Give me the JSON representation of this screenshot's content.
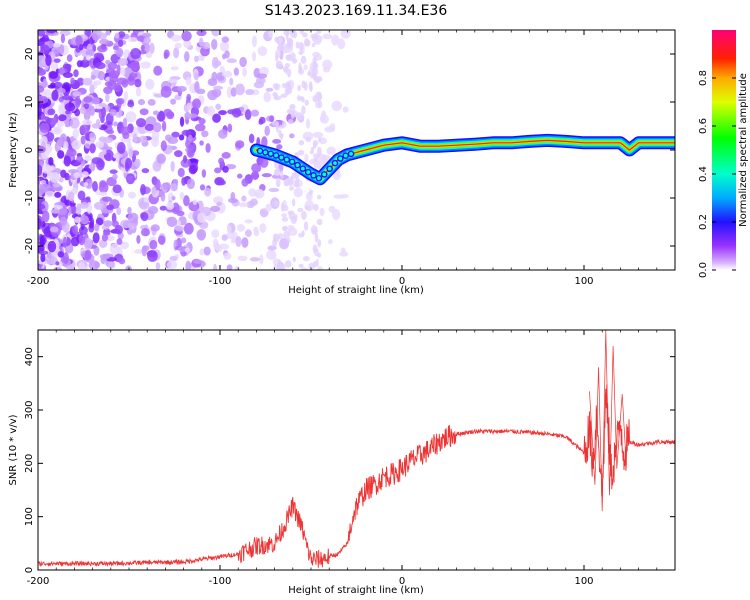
{
  "title": "S143.2023.169.11.34.E36",
  "colors": {
    "snr_line": "#ee3333",
    "axis": "#000000"
  },
  "chart_data": [
    {
      "type": "heatmap",
      "xlabel": "Height of straight line (km)",
      "ylabel": "Frequency (Hz)",
      "xlim": [
        -200,
        150
      ],
      "ylim": [
        -25,
        25
      ],
      "xticks": [
        -200,
        -100,
        0,
        100
      ],
      "yticks": [
        -20,
        -10,
        0,
        10,
        20
      ],
      "colorbar": {
        "label": "Normalized spectral amplitude",
        "ticks": [
          "0.0",
          "0.2",
          "0.4",
          "0.6",
          "0.8"
        ],
        "tick_values": [
          0.0,
          0.2,
          0.4,
          0.6,
          0.8
        ],
        "range": [
          0,
          1
        ],
        "colormap": "gist_rainbow_r"
      },
      "ridge": {
        "x": [
          -80,
          -70,
          -60,
          -50,
          -45,
          -40,
          -35,
          -30,
          -20,
          -10,
          0,
          10,
          20,
          30,
          40,
          50,
          60,
          70,
          80,
          90,
          100,
          110,
          120,
          125,
          130,
          140,
          150
        ],
        "y": [
          0,
          -1,
          -2.5,
          -5,
          -6,
          -4,
          -2,
          -1,
          0,
          1,
          1.5,
          0.8,
          0.8,
          1,
          1.2,
          1.5,
          1.5,
          1.8,
          2,
          1.8,
          1.5,
          1.5,
          1.5,
          0,
          1.5,
          1.5,
          1.5
        ]
      }
    },
    {
      "type": "line",
      "xlabel": "Height of straight line (km)",
      "ylabel": "SNR (10 * v/v)",
      "xlim": [
        -200,
        150
      ],
      "ylim": [
        0,
        450
      ],
      "xticks": [
        -200,
        -100,
        0,
        100
      ],
      "yticks": [
        0,
        100,
        200,
        300,
        400
      ],
      "series": [
        {
          "x": [
            -200,
            -180,
            -160,
            -140,
            -120,
            -110,
            -100,
            -90,
            -80,
            -70,
            -65,
            -60,
            -55,
            -52,
            -50,
            -45,
            -40,
            -35,
            -30,
            -27,
            -25,
            -20,
            -15,
            -10,
            -5,
            0,
            5,
            10,
            15,
            20,
            25,
            30,
            40,
            50,
            60,
            70,
            80,
            90,
            95,
            100,
            103,
            105,
            107,
            110,
            112,
            115,
            118,
            120,
            122,
            125,
            130,
            140,
            150
          ],
          "y": [
            12,
            12,
            12,
            14,
            15,
            20,
            25,
            30,
            45,
            50,
            80,
            120,
            80,
            40,
            20,
            20,
            25,
            30,
            50,
            100,
            120,
            150,
            160,
            175,
            180,
            190,
            205,
            215,
            225,
            240,
            250,
            255,
            260,
            260,
            260,
            258,
            255,
            250,
            235,
            220,
            260,
            200,
            300,
            140,
            330,
            180,
            230,
            280,
            220,
            240,
            235,
            240,
            240
          ]
        }
      ]
    }
  ]
}
